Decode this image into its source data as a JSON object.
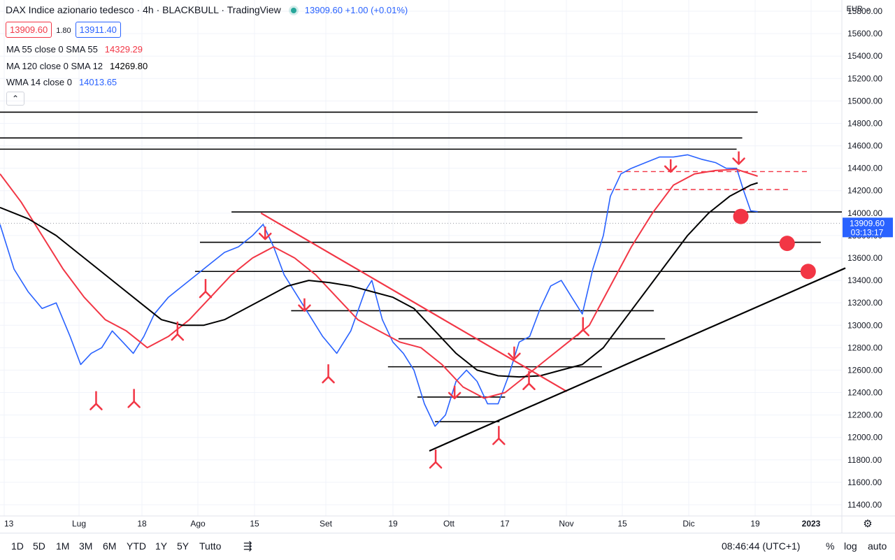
{
  "header": {
    "title": "DAX Indice azionario tedesco · 4h · BLACKBULL · TradingView",
    "last_quote": "13909.60 +1.00 (+0.01%)",
    "bid": "13909.60",
    "spread": "1.80",
    "ask": "13911.40"
  },
  "indicators": [
    {
      "label": "MA 55 close 0 SMA 55",
      "value": "14329.29",
      "color": "#f23645"
    },
    {
      "label": "MA 120 close 0 SMA 12",
      "value": "14269.80",
      "color": "#000000"
    },
    {
      "label": "WMA 14 close 0",
      "value": "14013.65",
      "color": "#2962ff"
    }
  ],
  "currency": "EUR",
  "price_tag": {
    "price": "13909.60",
    "countdown": "03:13:17"
  },
  "bottom": {
    "ranges": [
      "1D",
      "5D",
      "1M",
      "3M",
      "6M",
      "YTD",
      "1Y",
      "5Y",
      "Tutto"
    ],
    "time": "08:46:44 (UTC+1)",
    "right": [
      "%",
      "log",
      "auto"
    ]
  },
  "chart_data": {
    "type": "line",
    "title": "DAX Indice azionario tedesco · 4h · BLACKBULL · TradingView",
    "x_ticks": [
      "13",
      "Lug",
      "18",
      "Ago",
      "15",
      "Set",
      "19",
      "Ott",
      "17",
      "Nov",
      "15",
      "Dic",
      "19",
      "2023"
    ],
    "y_ticks": [
      11400,
      11600,
      11800,
      12000,
      12200,
      12400,
      12600,
      12800,
      13000,
      13200,
      13400,
      13600,
      13800,
      14000,
      14200,
      14400,
      14600,
      14800,
      15000,
      15200,
      15400,
      15600,
      15800
    ],
    "y_range": [
      11300,
      15900
    ],
    "x_range": [
      0,
      1200
    ],
    "grid": true,
    "series": [
      {
        "name": "WMA 14 close 0",
        "color": "#2962ff",
        "x": [
          0,
          20,
          40,
          60,
          80,
          100,
          115,
          130,
          145,
          160,
          175,
          190,
          205,
          220,
          240,
          260,
          280,
          300,
          320,
          340,
          360,
          375,
          390,
          405,
          420,
          440,
          460,
          480,
          500,
          520,
          530,
          545,
          560,
          575,
          590,
          605,
          620,
          635,
          650,
          665,
          680,
          695,
          710,
          725,
          740,
          755,
          770,
          785,
          800,
          815,
          830,
          845,
          860,
          870,
          885,
          900,
          920,
          940,
          960,
          980,
          1000,
          1020,
          1035,
          1050,
          1060,
          1070,
          1080
        ],
        "y": [
          13900,
          13500,
          13300,
          13150,
          13200,
          12900,
          12650,
          12750,
          12800,
          12950,
          12850,
          12750,
          12900,
          13100,
          13250,
          13350,
          13450,
          13550,
          13650,
          13700,
          13800,
          13900,
          13700,
          13450,
          13300,
          13100,
          12900,
          12750,
          12950,
          13300,
          13400,
          13050,
          12850,
          12750,
          12600,
          12300,
          12100,
          12200,
          12500,
          12600,
          12500,
          12300,
          12300,
          12550,
          12850,
          12900,
          13150,
          13350,
          13400,
          13250,
          13100,
          13500,
          13800,
          14150,
          14350,
          14400,
          14450,
          14500,
          14500,
          14520,
          14480,
          14450,
          14400,
          14400,
          14200,
          14020,
          14013
        ]
      },
      {
        "name": "MA 55 close 0 SMA 55",
        "color": "#f23645",
        "x": [
          0,
          30,
          60,
          90,
          120,
          150,
          180,
          210,
          240,
          270,
          300,
          330,
          360,
          390,
          420,
          450,
          480,
          510,
          540,
          570,
          600,
          630,
          660,
          690,
          720,
          750,
          780,
          810,
          840,
          870,
          900,
          930,
          960,
          990,
          1020,
          1050,
          1080
        ],
        "y": [
          14350,
          14100,
          13800,
          13500,
          13250,
          13050,
          12950,
          12800,
          12900,
          13050,
          13250,
          13450,
          13600,
          13700,
          13600,
          13450,
          13250,
          13050,
          12950,
          12850,
          12800,
          12650,
          12450,
          12350,
          12400,
          12550,
          12700,
          12850,
          13000,
          13350,
          13700,
          14000,
          14250,
          14350,
          14380,
          14390,
          14329
        ]
      },
      {
        "name": "MA 120 close 0 SMA 12",
        "color": "#000000",
        "x": [
          0,
          40,
          80,
          110,
          140,
          170,
          200,
          230,
          260,
          290,
          320,
          350,
          380,
          410,
          440,
          470,
          500,
          530,
          560,
          590,
          620,
          650,
          680,
          710,
          740,
          770,
          800,
          830,
          860,
          890,
          920,
          950,
          980,
          1010,
          1040,
          1070,
          1080
        ],
        "y": [
          14050,
          13950,
          13800,
          13650,
          13500,
          13350,
          13200,
          13050,
          13000,
          13000,
          13050,
          13150,
          13250,
          13350,
          13400,
          13380,
          13350,
          13300,
          13250,
          13150,
          12950,
          12750,
          12600,
          12550,
          12540,
          12550,
          12600,
          12650,
          12800,
          13050,
          13300,
          13550,
          13800,
          14000,
          14150,
          14250,
          14270
        ]
      }
    ],
    "annotations": {
      "horizontal_lines": [
        {
          "y": 14900,
          "x1": 0,
          "x2": 1080,
          "color": "#000000"
        },
        {
          "y": 14670,
          "x1": 0,
          "x2": 1058,
          "color": "#000000"
        },
        {
          "y": 14570,
          "x1": 0,
          "x2": 1050,
          "color": "#000000"
        },
        {
          "y": 14010,
          "x1": 330,
          "x2": 1200,
          "color": "#000000"
        },
        {
          "y": 13740,
          "x1": 285,
          "x2": 1170,
          "color": "#000000"
        },
        {
          "y": 13480,
          "x1": 278,
          "x2": 1160,
          "color": "#000000"
        },
        {
          "y": 13130,
          "x1": 415,
          "x2": 932,
          "color": "#000000"
        },
        {
          "y": 12880,
          "x1": 568,
          "x2": 948,
          "color": "#000000"
        },
        {
          "y": 12630,
          "x1": 553,
          "x2": 858,
          "color": "#000000"
        },
        {
          "y": 12360,
          "x1": 595,
          "x2": 720,
          "color": "#000000"
        },
        {
          "y": 12140,
          "x1": 620,
          "x2": 712,
          "color": "#000000"
        },
        {
          "y": 14370,
          "x1": 880,
          "x2": 1155,
          "color": "#f23645",
          "dashed": true
        },
        {
          "y": 14210,
          "x1": 865,
          "x2": 1125,
          "color": "#f23645",
          "dashed": true
        }
      ],
      "trendlines": [
        {
          "x1": 372,
          "y1": 14000,
          "x2": 808,
          "y2": 12410,
          "color": "#f23645"
        },
        {
          "x1": 612,
          "y1": 11880,
          "x2": 1205,
          "y2": 13510,
          "color": "#000000"
        }
      ],
      "up_arrows": [
        {
          "x": 137,
          "y": 12300
        },
        {
          "x": 191,
          "y": 12320
        },
        {
          "x": 253,
          "y": 12920
        },
        {
          "x": 293,
          "y": 13300
        },
        {
          "x": 468,
          "y": 12540
        },
        {
          "x": 621,
          "y": 11780
        },
        {
          "x": 711,
          "y": 11990
        },
        {
          "x": 754,
          "y": 12480
        },
        {
          "x": 831,
          "y": 12960
        }
      ],
      "down_arrows": [
        {
          "x": 378,
          "y": 14020
        },
        {
          "x": 434,
          "y": 13380
        },
        {
          "x": 648,
          "y": 12600
        },
        {
          "x": 733,
          "y": 12950
        },
        {
          "x": 956,
          "y": 14620
        },
        {
          "x": 1053,
          "y": 14690
        }
      ],
      "dots": [
        {
          "x": 1056,
          "y": 13970
        },
        {
          "x": 1122,
          "y": 13730
        },
        {
          "x": 1152,
          "y": 13480
        }
      ]
    }
  }
}
